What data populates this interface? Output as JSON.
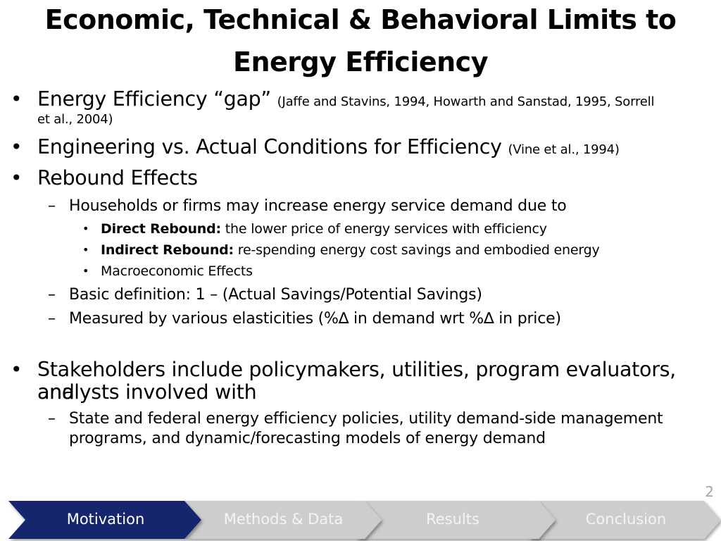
{
  "slide": {
    "title": "Economic, Technical & Behavioral Limits to Energy Efficiency",
    "page_number": "2"
  },
  "bullets": {
    "b1": {
      "text": "Energy Efficiency “gap”",
      "citation_line1": "(Jaffe and Stavins, 1994, Howarth and Sanstad, 1995, Sorrell",
      "citation_line2": "et al., 2004)"
    },
    "b2": {
      "text": "Engineering vs. Actual Conditions for Efficiency",
      "citation": "(Vine et al., 1994)"
    },
    "b3": {
      "text": "Rebound Effects",
      "sub1": "Households or firms may increase energy service demand due to",
      "sub1_items": [
        {
          "bold": "Direct Rebound:",
          "text": "the lower price of energy services with efficiency"
        },
        {
          "bold": "Indirect Rebound:",
          "text": "re-spending energy cost savings and embodied energy"
        },
        {
          "bold": "",
          "text": "Macroeconomic Effects"
        }
      ],
      "sub2": "Basic definition: 1 – (Actual Savings/Potential Savings)",
      "sub3": "Measured by various elasticities (%∆ in demand wrt %∆ in price)"
    },
    "b4": {
      "line1": "Stakeholders include policymakers, utilities, program evaluators, and",
      "line2": "analysts involved with",
      "sub1_line1": "State and federal energy efficiency policies, utility demand-side management",
      "sub1_line2": "programs, and dynamic/forecasting models of energy demand"
    }
  },
  "nav": {
    "items": [
      {
        "label": "Motivation",
        "active": true
      },
      {
        "label": "Methods & Data",
        "active": false
      },
      {
        "label": "Results",
        "active": false
      },
      {
        "label": "Conclusion",
        "active": false
      }
    ],
    "colors": {
      "active": "#16266e",
      "inactive": "#cdcdcd",
      "inactive_text": "#f4f4f4"
    }
  }
}
